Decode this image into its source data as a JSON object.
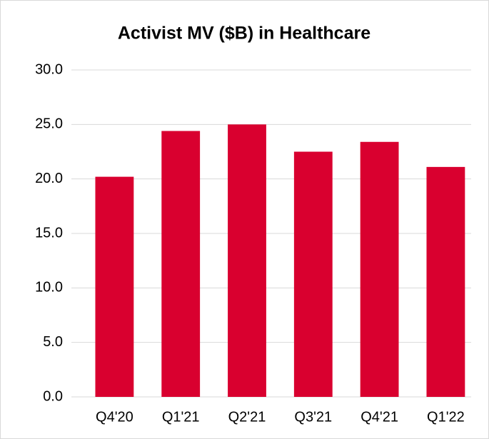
{
  "chart_data": {
    "type": "bar",
    "title": "Activist MV ($B) in Healthcare",
    "categories": [
      "Q4'20",
      "Q1'21",
      "Q2'21",
      "Q3'21",
      "Q4'21",
      "Q1'22"
    ],
    "values": [
      20.2,
      24.4,
      25.0,
      22.5,
      23.4,
      21.1
    ],
    "color": "#d9002f",
    "ylim": [
      0,
      30
    ],
    "yticks": [
      {
        "value": 0,
        "label": "0.0"
      },
      {
        "value": 5,
        "label": "5.0"
      },
      {
        "value": 10,
        "label": "10.0"
      },
      {
        "value": 15,
        "label": "15.0"
      },
      {
        "value": 20,
        "label": "20.0"
      },
      {
        "value": 25,
        "label": "25.0"
      },
      {
        "value": 30,
        "label": "30.0"
      }
    ],
    "grid": true
  }
}
